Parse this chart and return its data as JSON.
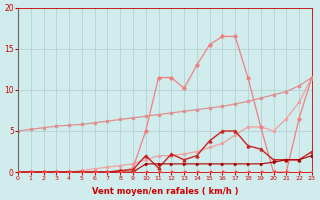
{
  "x": [
    0,
    1,
    2,
    3,
    4,
    5,
    6,
    7,
    8,
    9,
    10,
    11,
    12,
    13,
    14,
    15,
    16,
    17,
    18,
    19,
    20,
    21,
    22,
    23
  ],
  "line_diagonal": [
    5.0,
    5.2,
    5.4,
    5.6,
    5.7,
    5.8,
    6.0,
    6.2,
    6.4,
    6.6,
    6.8,
    7.0,
    7.2,
    7.4,
    7.6,
    7.8,
    8.0,
    8.3,
    8.6,
    9.0,
    9.4,
    9.8,
    10.5,
    11.5
  ],
  "line_diagonal_color": "#e09090",
  "line_spiky": [
    0,
    0,
    0,
    0,
    0,
    0,
    0,
    0,
    0,
    0.5,
    5.0,
    11.5,
    11.5,
    10.2,
    13.0,
    15.5,
    16.5,
    16.5,
    11.5,
    5.5,
    0,
    0,
    6.5,
    11.5
  ],
  "line_spiky_color": "#f08080",
  "line_medium": [
    0,
    0,
    0,
    0,
    0,
    0.2,
    0.4,
    0.6,
    0.8,
    1.0,
    1.5,
    2.0,
    2.0,
    2.2,
    2.5,
    3.0,
    3.5,
    4.5,
    5.5,
    5.5,
    5.0,
    6.5,
    8.5,
    11.5
  ],
  "line_medium_color": "#f0a0a0",
  "line_dark": [
    0,
    0,
    0,
    0,
    0,
    0,
    0,
    0,
    0.2,
    0.3,
    2.0,
    0.5,
    2.2,
    1.5,
    2.0,
    3.8,
    5.0,
    5.0,
    3.2,
    2.8,
    1.5,
    1.5,
    1.5,
    2.5
  ],
  "line_dark_color": "#cc2222",
  "line_flat": [
    0,
    0,
    0,
    0,
    0,
    0,
    0,
    0,
    0,
    0,
    1.0,
    1.0,
    1.0,
    1.0,
    1.0,
    1.0,
    1.0,
    1.0,
    1.0,
    1.0,
    1.2,
    1.5,
    1.5,
    2.0
  ],
  "line_flat_color": "#aa0000",
  "line_bottom": [
    0,
    0,
    0,
    0,
    0,
    0,
    0,
    0,
    0,
    0,
    0,
    0,
    0,
    0,
    0,
    0,
    0,
    0,
    0,
    0,
    0,
    0,
    0,
    0
  ],
  "line_bottom_color": "#ff4444",
  "bg_color": "#d0ecec",
  "grid_color": "#b0cccc",
  "xlabel": "Vent moyen/en rafales ( km/h )",
  "ylim": [
    0,
    20
  ],
  "xlim": [
    0,
    23
  ],
  "yticks": [
    0,
    5,
    10,
    15,
    20
  ],
  "xticks": [
    0,
    1,
    2,
    3,
    4,
    5,
    6,
    7,
    8,
    9,
    10,
    11,
    12,
    13,
    14,
    15,
    16,
    17,
    18,
    19,
    20,
    21,
    22,
    23
  ],
  "tick_color": "#cc0000",
  "label_color": "#cc0000"
}
